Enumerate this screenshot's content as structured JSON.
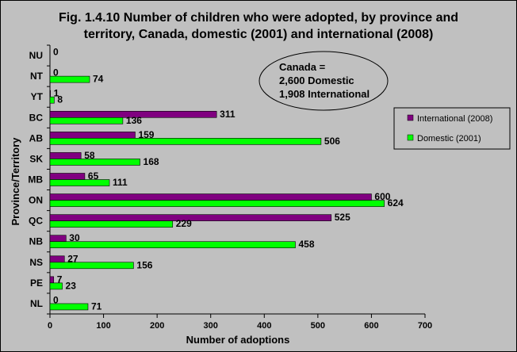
{
  "chart_data": {
    "type": "bar",
    "orientation": "horizontal",
    "title_line1": "Fig. 1.4.10 Number of children who were adopted, by province and",
    "title_line2": "territory, Canada, domestic (2001) and international (2008)",
    "xlabel": "Number of adoptions",
    "ylabel": "Province/Territory",
    "xlim": [
      0,
      700
    ],
    "xticks": [
      "0",
      "100",
      "200",
      "300",
      "400",
      "500",
      "600",
      "700"
    ],
    "categories": [
      "NU",
      "NT",
      "YT",
      "BC",
      "AB",
      "SK",
      "MB",
      "ON",
      "QC",
      "NB",
      "NS",
      "PE",
      "NL"
    ],
    "series": [
      {
        "name": "International (2008)",
        "color": "#800080",
        "values": [
          0,
          0,
          1,
          311,
          159,
          58,
          65,
          600,
          525,
          30,
          27,
          7,
          0
        ]
      },
      {
        "name": "Domestic (2001)",
        "color": "#00ff00",
        "values": [
          null,
          74,
          8,
          136,
          506,
          168,
          111,
          624,
          229,
          458,
          156,
          23,
          71
        ]
      }
    ],
    "grid": false,
    "legend_position": "right",
    "annotation": {
      "line1": "Canada =",
      "line2": "2,600 Domestic",
      "line3": "1,908 International",
      "fill": "#c0c0c0"
    }
  }
}
